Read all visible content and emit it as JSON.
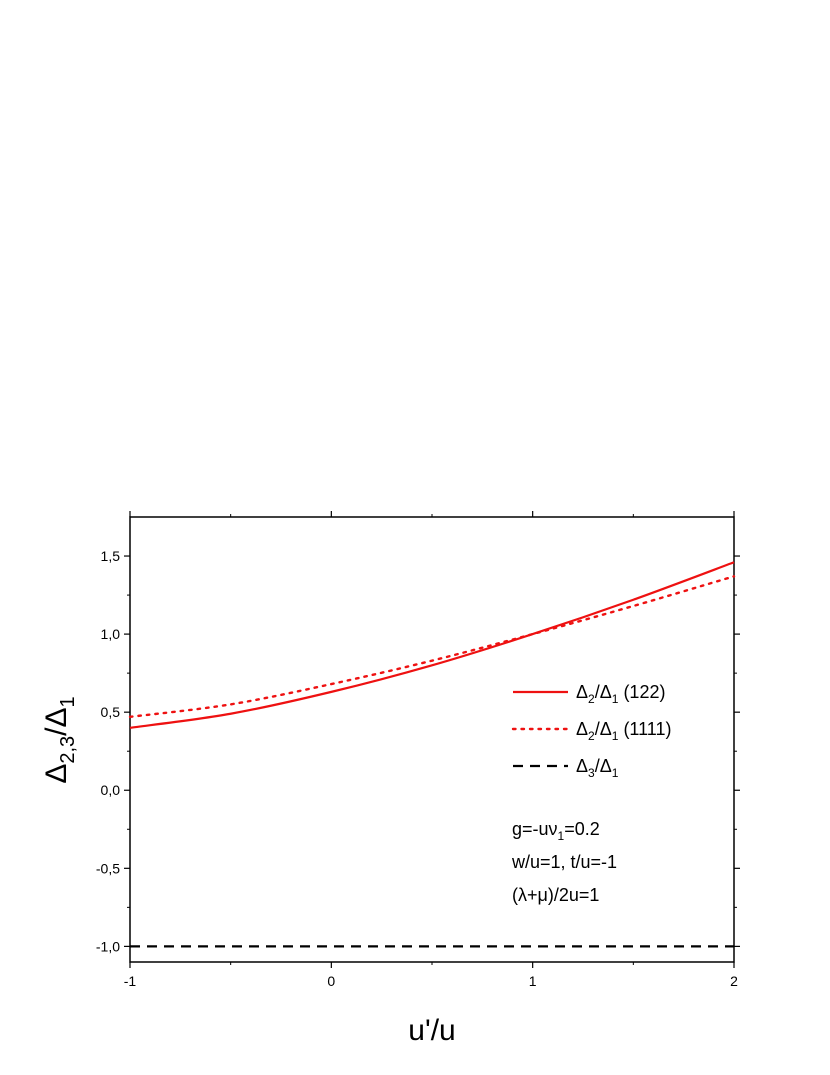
{
  "chart_data": {
    "type": "line",
    "xlabel": "u'/u",
    "ylabel": "Δ2,3/Δ1",
    "xlim": [
      -1,
      2
    ],
    "ylim": [
      -1.1,
      1.75
    ],
    "x_ticks": [
      -1,
      0,
      1,
      2
    ],
    "x_tick_labels": [
      "-1",
      "0",
      "1",
      "2"
    ],
    "y_ticks": [
      -1.0,
      -0.5,
      0.0,
      0.5,
      1.0,
      1.5
    ],
    "y_tick_labels": [
      "-1,0",
      "-0,5",
      "0,0",
      "0,5",
      "1,0",
      "1,5"
    ],
    "grid": false,
    "legend_position": "right",
    "series": [
      {
        "name": "Δ2/Δ1 (122)",
        "legend_main": "Δ",
        "legend_sub1": "2",
        "legend_mid": "/Δ",
        "legend_sub2": "1",
        "legend_tail": " (122)",
        "style": "solid",
        "color": "#ee1111",
        "x": [
          -1,
          -0.5,
          0,
          0.5,
          1,
          1.5,
          2
        ],
        "y": [
          0.4,
          0.49,
          0.63,
          0.8,
          1.0,
          1.22,
          1.46
        ]
      },
      {
        "name": "Δ2/Δ1 (1111)",
        "legend_main": "Δ",
        "legend_sub1": "2",
        "legend_mid": "/Δ",
        "legend_sub2": "1",
        "legend_tail": " (1111)",
        "style": "dotted",
        "color": "#ee1111",
        "x": [
          -1,
          -0.5,
          0,
          0.5,
          1,
          1.5,
          2
        ],
        "y": [
          0.47,
          0.55,
          0.68,
          0.83,
          1.0,
          1.18,
          1.37
        ]
      },
      {
        "name": "Δ3/Δ1",
        "legend_main": "Δ",
        "legend_sub1": "3",
        "legend_mid": "/Δ",
        "legend_sub2": "1",
        "legend_tail": "",
        "style": "dashed",
        "color": "#000000",
        "x": [
          -1,
          2
        ],
        "y": [
          -1.0,
          -1.0
        ]
      }
    ],
    "annotations": {
      "line1_a": "g=-uν",
      "line1_sub": "1",
      "line1_b": "=0.2",
      "line2": "w/u=1, t/u=-1",
      "line3": "(λ+μ)/2u=1"
    }
  }
}
